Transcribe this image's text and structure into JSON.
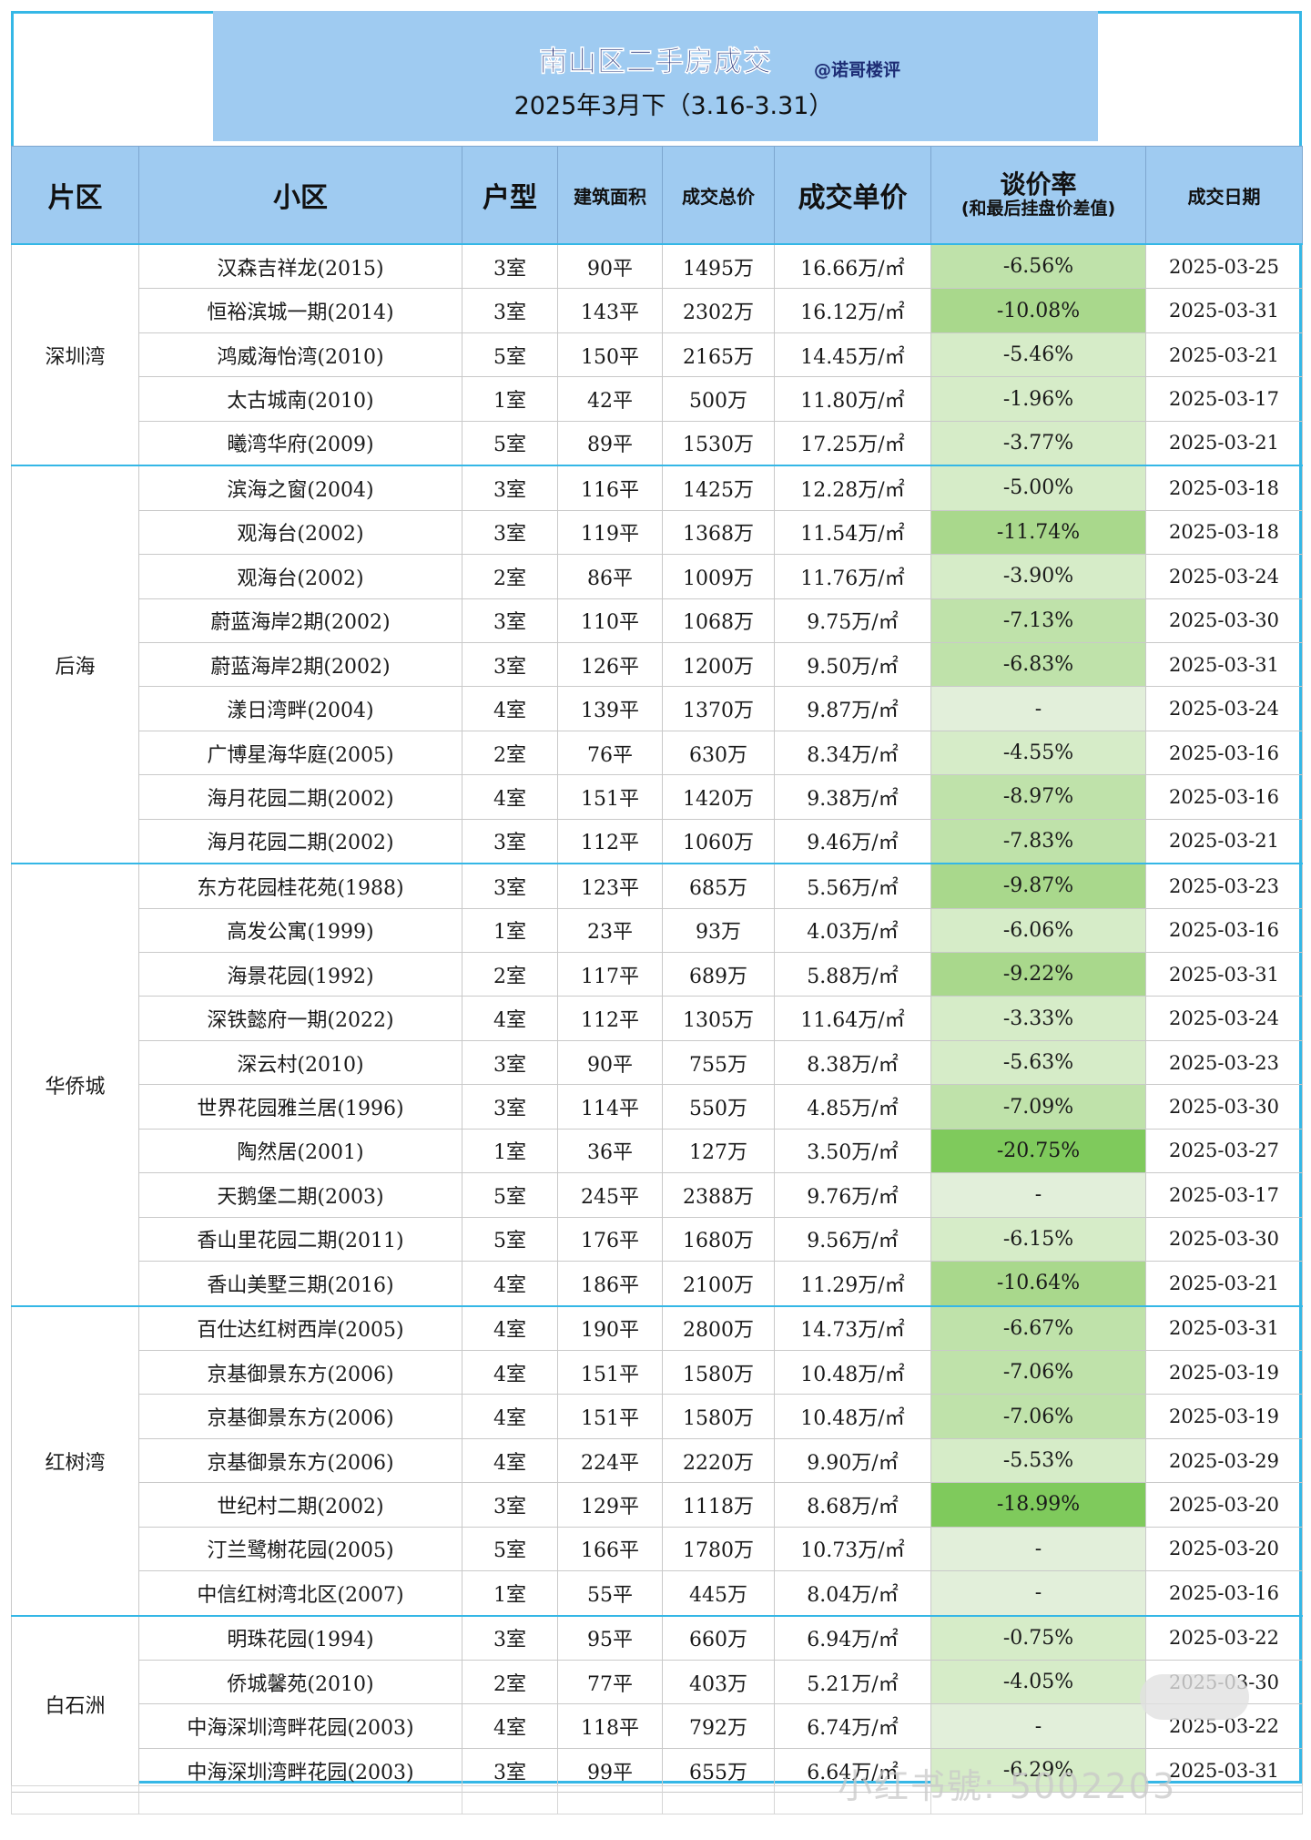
{
  "banner": {
    "title": "南山区二手房成交",
    "handle": "@诺哥楼评",
    "subtitle": "2025年3月下（3.16-3.31）"
  },
  "headers": {
    "area": "片区",
    "estate": "小区",
    "layout": "户型",
    "size": "建筑面积",
    "total": "成交总价",
    "unit": "成交单价",
    "neg": "谈价率",
    "neg_sub": "(和最后挂盘价差值)",
    "date": "成交日期"
  },
  "neg_colors": {
    "none": "#e2efda",
    "light": "#d6ecc8",
    "mid": "#bfe2aa",
    "strong": "#a9d88c",
    "deep": "#7fca5c"
  },
  "groups": [
    {
      "area": "深圳湾",
      "rows": [
        {
          "estate": "汉森吉祥龙(2015)",
          "layout": "3室",
          "size": "90平",
          "total": "1495万",
          "unit": "16.66万/㎡",
          "neg": "-6.56%",
          "neg_value": -6.56,
          "date": "2025-03-25"
        },
        {
          "estate": "恒裕滨城一期(2014)",
          "layout": "3室",
          "size": "143平",
          "total": "2302万",
          "unit": "16.12万/㎡",
          "neg": "-10.08%",
          "neg_value": -10.08,
          "date": "2025-03-31"
        },
        {
          "estate": "鸿威海怡湾(2010)",
          "layout": "5室",
          "size": "150平",
          "total": "2165万",
          "unit": "14.45万/㎡",
          "neg": "-5.46%",
          "neg_value": -5.46,
          "date": "2025-03-21"
        },
        {
          "estate": "太古城南(2010)",
          "layout": "1室",
          "size": "42平",
          "total": "500万",
          "unit": "11.80万/㎡",
          "neg": "-1.96%",
          "neg_value": -1.96,
          "date": "2025-03-17"
        },
        {
          "estate": "曦湾华府(2009)",
          "layout": "5室",
          "size": "89平",
          "total": "1530万",
          "unit": "17.25万/㎡",
          "neg": "-3.77%",
          "neg_value": -3.77,
          "date": "2025-03-21"
        }
      ]
    },
    {
      "area": "后海",
      "rows": [
        {
          "estate": "滨海之窗(2004)",
          "layout": "3室",
          "size": "116平",
          "total": "1425万",
          "unit": "12.28万/㎡",
          "neg": "-5.00%",
          "neg_value": -5.0,
          "date": "2025-03-18"
        },
        {
          "estate": "观海台(2002)",
          "layout": "3室",
          "size": "119平",
          "total": "1368万",
          "unit": "11.54万/㎡",
          "neg": "-11.74%",
          "neg_value": -11.74,
          "date": "2025-03-18"
        },
        {
          "estate": "观海台(2002)",
          "layout": "2室",
          "size": "86平",
          "total": "1009万",
          "unit": "11.76万/㎡",
          "neg": "-3.90%",
          "neg_value": -3.9,
          "date": "2025-03-24"
        },
        {
          "estate": "蔚蓝海岸2期(2002)",
          "layout": "3室",
          "size": "110平",
          "total": "1068万",
          "unit": "9.75万/㎡",
          "neg": "-7.13%",
          "neg_value": -7.13,
          "date": "2025-03-30"
        },
        {
          "estate": "蔚蓝海岸2期(2002)",
          "layout": "3室",
          "size": "126平",
          "total": "1200万",
          "unit": "9.50万/㎡",
          "neg": "-6.83%",
          "neg_value": -6.83,
          "date": "2025-03-31"
        },
        {
          "estate": "漾日湾畔(2004)",
          "layout": "4室",
          "size": "139平",
          "total": "1370万",
          "unit": "9.87万/㎡",
          "neg": "-",
          "neg_value": null,
          "date": "2025-03-24"
        },
        {
          "estate": "广博星海华庭(2005)",
          "layout": "2室",
          "size": "76平",
          "total": "630万",
          "unit": "8.34万/㎡",
          "neg": "-4.55%",
          "neg_value": -4.55,
          "date": "2025-03-16"
        },
        {
          "estate": "海月花园二期(2002)",
          "layout": "4室",
          "size": "151平",
          "total": "1420万",
          "unit": "9.38万/㎡",
          "neg": "-8.97%",
          "neg_value": -8.97,
          "date": "2025-03-16"
        },
        {
          "estate": "海月花园二期(2002)",
          "layout": "3室",
          "size": "112平",
          "total": "1060万",
          "unit": "9.46万/㎡",
          "neg": "-7.83%",
          "neg_value": -7.83,
          "date": "2025-03-21"
        }
      ]
    },
    {
      "area": "华侨城",
      "rows": [
        {
          "estate": "东方花园桂花苑(1988)",
          "layout": "3室",
          "size": "123平",
          "total": "685万",
          "unit": "5.56万/㎡",
          "neg": "-9.87%",
          "neg_value": -9.87,
          "date": "2025-03-23"
        },
        {
          "estate": "高发公寓(1999)",
          "layout": "1室",
          "size": "23平",
          "total": "93万",
          "unit": "4.03万/㎡",
          "neg": "-6.06%",
          "neg_value": -6.06,
          "date": "2025-03-16"
        },
        {
          "estate": "海景花园(1992)",
          "layout": "2室",
          "size": "117平",
          "total": "689万",
          "unit": "5.88万/㎡",
          "neg": "-9.22%",
          "neg_value": -9.22,
          "date": "2025-03-31"
        },
        {
          "estate": "深铁懿府一期(2022)",
          "layout": "4室",
          "size": "112平",
          "total": "1305万",
          "unit": "11.64万/㎡",
          "neg": "-3.33%",
          "neg_value": -3.33,
          "date": "2025-03-24"
        },
        {
          "estate": "深云村(2010)",
          "layout": "3室",
          "size": "90平",
          "total": "755万",
          "unit": "8.38万/㎡",
          "neg": "-5.63%",
          "neg_value": -5.63,
          "date": "2025-03-23"
        },
        {
          "estate": "世界花园雅兰居(1996)",
          "layout": "3室",
          "size": "114平",
          "total": "550万",
          "unit": "4.85万/㎡",
          "neg": "-7.09%",
          "neg_value": -7.09,
          "date": "2025-03-30"
        },
        {
          "estate": "陶然居(2001)",
          "layout": "1室",
          "size": "36平",
          "total": "127万",
          "unit": "3.50万/㎡",
          "neg": "-20.75%",
          "neg_value": -20.75,
          "date": "2025-03-27"
        },
        {
          "estate": "天鹅堡二期(2003)",
          "layout": "5室",
          "size": "245平",
          "total": "2388万",
          "unit": "9.76万/㎡",
          "neg": "-",
          "neg_value": null,
          "date": "2025-03-17"
        },
        {
          "estate": "香山里花园二期(2011)",
          "layout": "5室",
          "size": "176平",
          "total": "1680万",
          "unit": "9.56万/㎡",
          "neg": "-6.15%",
          "neg_value": -6.15,
          "date": "2025-03-30"
        },
        {
          "estate": "香山美墅三期(2016)",
          "layout": "4室",
          "size": "186平",
          "total": "2100万",
          "unit": "11.29万/㎡",
          "neg": "-10.64%",
          "neg_value": -10.64,
          "date": "2025-03-21"
        }
      ]
    },
    {
      "area": "红树湾",
      "rows": [
        {
          "estate": "百仕达红树西岸(2005)",
          "layout": "4室",
          "size": "190平",
          "total": "2800万",
          "unit": "14.73万/㎡",
          "neg": "-6.67%",
          "neg_value": -6.67,
          "date": "2025-03-31"
        },
        {
          "estate": "京基御景东方(2006)",
          "layout": "4室",
          "size": "151平",
          "total": "1580万",
          "unit": "10.48万/㎡",
          "neg": "-7.06%",
          "neg_value": -7.06,
          "date": "2025-03-19"
        },
        {
          "estate": "京基御景东方(2006)",
          "layout": "4室",
          "size": "151平",
          "total": "1580万",
          "unit": "10.48万/㎡",
          "neg": "-7.06%",
          "neg_value": -7.06,
          "date": "2025-03-19"
        },
        {
          "estate": "京基御景东方(2006)",
          "layout": "4室",
          "size": "224平",
          "total": "2220万",
          "unit": "9.90万/㎡",
          "neg": "-5.53%",
          "neg_value": -5.53,
          "date": "2025-03-29"
        },
        {
          "estate": "世纪村二期(2002)",
          "layout": "3室",
          "size": "129平",
          "total": "1118万",
          "unit": "8.68万/㎡",
          "neg": "-18.99%",
          "neg_value": -18.99,
          "date": "2025-03-20"
        },
        {
          "estate": "汀兰鹭榭花园(2005)",
          "layout": "5室",
          "size": "166平",
          "total": "1780万",
          "unit": "10.73万/㎡",
          "neg": "-",
          "neg_value": null,
          "date": "2025-03-20"
        },
        {
          "estate": "中信红树湾北区(2007)",
          "layout": "1室",
          "size": "55平",
          "total": "445万",
          "unit": "8.04万/㎡",
          "neg": "-",
          "neg_value": null,
          "date": "2025-03-16"
        }
      ]
    },
    {
      "area": "白石洲",
      "rows": [
        {
          "estate": "明珠花园(1994)",
          "layout": "3室",
          "size": "95平",
          "total": "660万",
          "unit": "6.94万/㎡",
          "neg": "-0.75%",
          "neg_value": -0.75,
          "date": "2025-03-22"
        },
        {
          "estate": "侨城馨苑(2010)",
          "layout": "2室",
          "size": "77平",
          "total": "403万",
          "unit": "5.21万/㎡",
          "neg": "-4.05%",
          "neg_value": -4.05,
          "date": "2025-03-30"
        },
        {
          "estate": "中海深圳湾畔花园(2003)",
          "layout": "4室",
          "size": "118平",
          "total": "792万",
          "unit": "6.74万/㎡",
          "neg": "-",
          "neg_value": null,
          "date": "2025-03-22"
        },
        {
          "estate": "中海深圳湾畔花园(2003)",
          "layout": "3室",
          "size": "99平",
          "total": "655万",
          "unit": "6.64万/㎡",
          "neg": "-6.29%",
          "neg_value": -6.29,
          "date": "2025-03-31"
        }
      ]
    }
  ],
  "watermark": "小红书號: 5002203"
}
